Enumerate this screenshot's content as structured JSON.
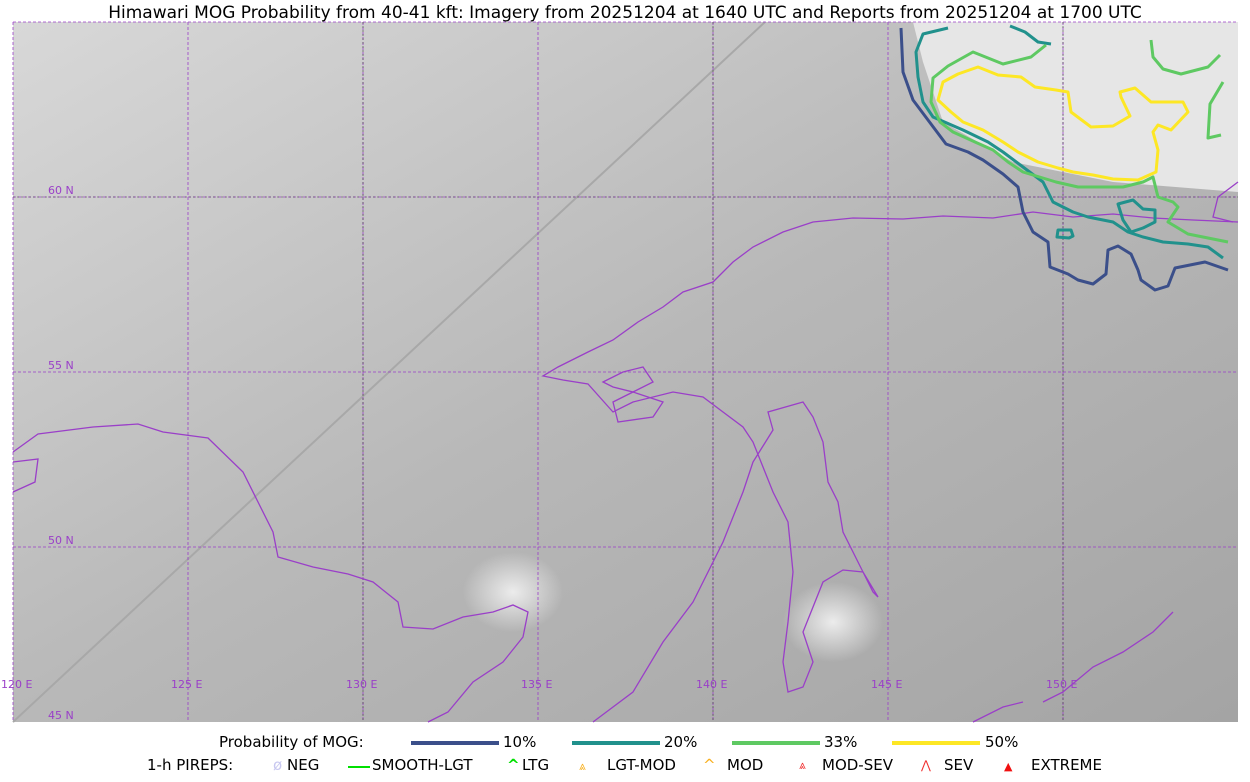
{
  "title": "Himawari MOG Probability from 40-41 kft: Imagery from 20251204 at 1640 UTC and Reports from 20251204 at 1700 UTC",
  "map": {
    "longitude_labels": [
      "120 E",
      "125 E",
      "130 E",
      "135 E",
      "140 E",
      "145 E",
      "150 E"
    ],
    "latitude_labels": [
      "60 N",
      "55 N",
      "50 N",
      "45 N"
    ],
    "coastline_color": "#9a3fc8",
    "grid_color": "#9a3fc8"
  },
  "legend": {
    "probability_label": "Probability of MOG:",
    "probability_levels": [
      {
        "label": "10%",
        "color": "#3b4f8a"
      },
      {
        "label": "20%",
        "color": "#21918c"
      },
      {
        "label": "33%",
        "color": "#5ec962"
      },
      {
        "label": "50%",
        "color": "#fde725"
      }
    ],
    "pireps_label": "1-h PIREPS:",
    "pireps": [
      {
        "label": "NEG",
        "icon": "neg-icon",
        "color": "#c8c8f0"
      },
      {
        "label": "SMOOTH-LGT",
        "icon": "line-icon",
        "color": "#00e000"
      },
      {
        "label": "LTG",
        "icon": "caret-icon",
        "color": "#00e000"
      },
      {
        "label": "LGT-MOD",
        "icon": "caret-bar-icon",
        "color": "#f8b020"
      },
      {
        "label": "MOD",
        "icon": "caret-icon",
        "color": "#f8b020"
      },
      {
        "label": "MOD-SEV",
        "icon": "double-caret-bar-icon",
        "color": "#f03030"
      },
      {
        "label": "SEV",
        "icon": "double-caret-icon",
        "color": "#f03030"
      },
      {
        "label": "EXTREME",
        "icon": "filled-triangle-icon",
        "color": "#f01010"
      }
    ]
  }
}
